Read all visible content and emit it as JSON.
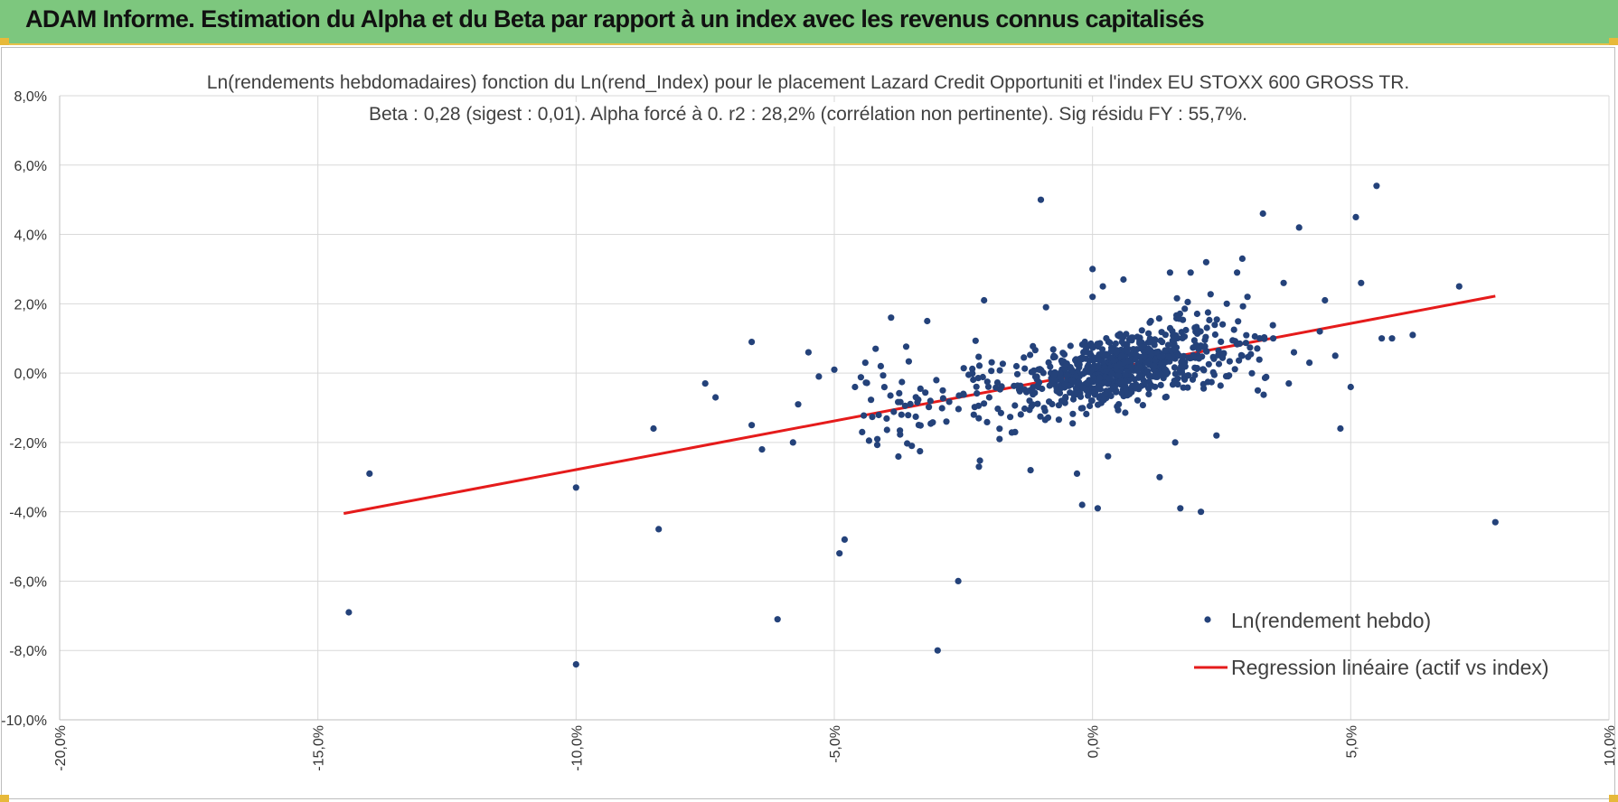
{
  "header": {
    "title": "ADAM Informe. Estimation du Alpha et du Beta par rapport à un index avec les revenus connus capitalisés"
  },
  "colors": {
    "header_bg": "#7dc77e",
    "accent": "#e7b93a",
    "points": "#24427a",
    "regression": "#e51b1b",
    "grid": "#d9d9d9"
  },
  "chart_data": {
    "type": "scatter",
    "title": "Ln(rendements hebdomadaires) fonction du Ln(rend_Index) pour le placement Lazard Credit Opportuniti et l'index EU STOXX 600 GROSS TR.",
    "subtitle": "Beta : 0,28 (sigest : 0,01).  Alpha forcé à 0. r2 : 28,2% (corrélation non pertinente). Sig résidu FY : 55,7%.",
    "xlabel": "",
    "ylabel": "",
    "xlim": [
      -20,
      10
    ],
    "ylim": [
      -10,
      8
    ],
    "x_ticks": [
      -20,
      -15,
      -10,
      -5,
      0,
      5,
      10
    ],
    "y_ticks": [
      -10,
      -8,
      -6,
      -4,
      -2,
      0,
      2,
      4,
      6,
      8
    ],
    "x_tick_labels": [
      "-20,0%",
      "-15,0%",
      "-10,0%",
      "-5,0%",
      "0,0%",
      "5,0%",
      "10,0%"
    ],
    "y_tick_labels": [
      "-10,0%",
      "-8,0%",
      "-6,0%",
      "-4,0%",
      "-2,0%",
      "0,0%",
      "2,0%",
      "4,0%",
      "6,0%",
      "8,0%"
    ],
    "grid": true,
    "legend_position": "bottom-right",
    "series": [
      {
        "name": "Ln(rendement hebdo)",
        "kind": "scatter",
        "points": [
          [
            -14.4,
            -6.9
          ],
          [
            -14.0,
            -2.9
          ],
          [
            -10.0,
            -8.4
          ],
          [
            -10.0,
            -3.3
          ],
          [
            -8.5,
            -1.6
          ],
          [
            -8.4,
            -4.5
          ],
          [
            -7.5,
            -0.3
          ],
          [
            -7.3,
            -0.7
          ],
          [
            -6.6,
            0.9
          ],
          [
            -6.6,
            -1.5
          ],
          [
            -6.4,
            -2.2
          ],
          [
            -6.1,
            -7.1
          ],
          [
            -5.8,
            -2.0
          ],
          [
            -5.7,
            -0.9
          ],
          [
            -5.5,
            0.6
          ],
          [
            -5.3,
            -0.1
          ],
          [
            -5.0,
            0.1
          ],
          [
            -4.9,
            -5.2
          ],
          [
            -4.8,
            -4.8
          ],
          [
            -4.6,
            -0.4
          ],
          [
            -4.4,
            0.3
          ],
          [
            -4.2,
            0.7
          ],
          [
            -4.1,
            0.2
          ],
          [
            -3.9,
            1.6
          ],
          [
            -3.7,
            -1.2
          ],
          [
            -3.5,
            -2.1
          ],
          [
            -3.2,
            1.5
          ],
          [
            -3.0,
            -8.0
          ],
          [
            -2.9,
            -0.5
          ],
          [
            -2.6,
            -6.0
          ],
          [
            -2.5,
            -0.6
          ],
          [
            -2.3,
            -1.2
          ],
          [
            -2.2,
            -2.7
          ],
          [
            -2.1,
            2.1
          ],
          [
            -2.0,
            -0.7
          ],
          [
            -1.8,
            -1.9
          ],
          [
            -1.5,
            -1.7
          ],
          [
            -1.2,
            -2.8
          ],
          [
            -1.0,
            5.0
          ],
          [
            -0.9,
            1.9
          ],
          [
            -0.6,
            -0.8
          ],
          [
            -0.4,
            -0.2
          ],
          [
            -0.3,
            -2.9
          ],
          [
            -0.2,
            -3.8
          ],
          [
            0.0,
            2.2
          ],
          [
            0.0,
            3.0
          ],
          [
            0.1,
            -3.9
          ],
          [
            0.2,
            2.5
          ],
          [
            0.3,
            -2.4
          ],
          [
            0.6,
            2.7
          ],
          [
            1.0,
            0.5
          ],
          [
            1.2,
            0.2
          ],
          [
            1.3,
            -3.0
          ],
          [
            1.5,
            2.9
          ],
          [
            1.6,
            -2.0
          ],
          [
            1.7,
            -3.9
          ],
          [
            1.9,
            2.9
          ],
          [
            2.1,
            -4.0
          ],
          [
            2.2,
            3.2
          ],
          [
            2.4,
            -1.8
          ],
          [
            2.6,
            2.0
          ],
          [
            2.8,
            2.9
          ],
          [
            2.9,
            3.3
          ],
          [
            3.0,
            2.2
          ],
          [
            3.2,
            -0.5
          ],
          [
            3.3,
            4.6
          ],
          [
            3.5,
            1.0
          ],
          [
            3.7,
            2.6
          ],
          [
            3.8,
            -0.3
          ],
          [
            3.9,
            0.6
          ],
          [
            4.0,
            4.2
          ],
          [
            4.2,
            0.3
          ],
          [
            4.4,
            1.2
          ],
          [
            4.5,
            2.1
          ],
          [
            4.7,
            0.5
          ],
          [
            4.8,
            -1.6
          ],
          [
            5.0,
            -0.4
          ],
          [
            5.1,
            4.5
          ],
          [
            5.2,
            2.6
          ],
          [
            5.5,
            5.4
          ],
          [
            5.6,
            1.0
          ],
          [
            5.8,
            1.0
          ],
          [
            6.2,
            1.1
          ],
          [
            7.1,
            2.5
          ],
          [
            7.8,
            -4.3
          ]
        ],
        "cluster": {
          "x_range": [
            -4.5,
            3.5
          ],
          "y_sigma": 0.75,
          "count": 860
        }
      },
      {
        "name": "Regression linéaire (actif vs index)",
        "kind": "line",
        "x": [
          -14.5,
          7.8
        ],
        "y": [
          -4.05,
          2.22
        ]
      }
    ]
  }
}
